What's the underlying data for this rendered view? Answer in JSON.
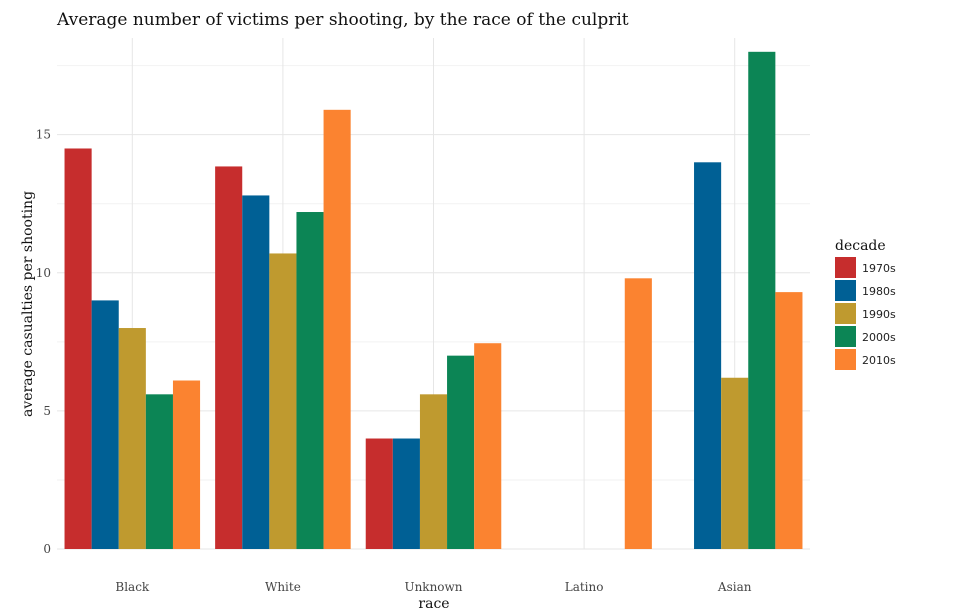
{
  "chart_data": {
    "type": "bar",
    "title": "Average number of victims per shooting, by the race of the culprit",
    "xlabel": "race",
    "ylabel": "average casualties per shooting",
    "categories": [
      "Black",
      "White",
      "Unknown",
      "Latino",
      "Asian"
    ],
    "ylim": [
      0,
      18.5
    ],
    "yticks": [
      0,
      5,
      10,
      15
    ],
    "grid": true,
    "legend": {
      "title": "decade",
      "position": "right"
    },
    "series": [
      {
        "name": "1970s",
        "color": "#c62d2d",
        "values": [
          14.5,
          13.85,
          4.0,
          null,
          null
        ]
      },
      {
        "name": "1980s",
        "color": "#006095",
        "values": [
          9.0,
          12.8,
          4.0,
          null,
          14.0
        ]
      },
      {
        "name": "1990s",
        "color": "#bf9a2f",
        "values": [
          8.0,
          10.7,
          5.6,
          null,
          6.2
        ]
      },
      {
        "name": "2000s",
        "color": "#0c8555",
        "values": [
          5.6,
          12.2,
          7.0,
          null,
          18.0
        ]
      },
      {
        "name": "2010s",
        "color": "#fb8330",
        "values": [
          6.1,
          15.9,
          7.45,
          9.8,
          9.3
        ]
      }
    ]
  }
}
